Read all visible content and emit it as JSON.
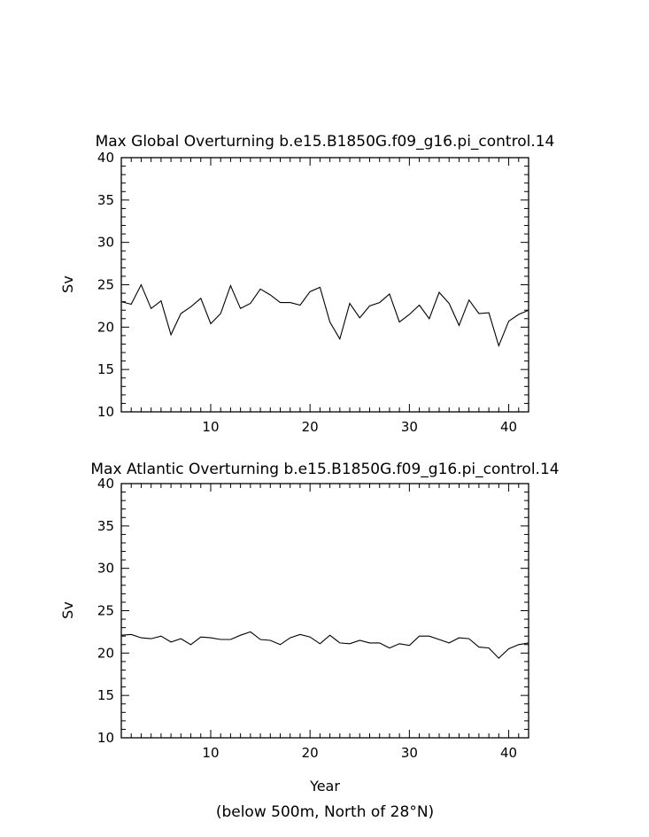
{
  "figure": {
    "footnote": "(below 500m, North of 28°N)"
  },
  "chart_data": [
    {
      "type": "line",
      "title": "Max Global Overturning b.e15.B1850G.f09_g16.pi_control.14",
      "xlabel": "",
      "ylabel": "Sv",
      "xlim": [
        1,
        42
      ],
      "ylim": [
        10,
        40
      ],
      "xticks": [
        10,
        20,
        30,
        40
      ],
      "yticks": [
        10,
        15,
        20,
        25,
        30,
        35,
        40
      ],
      "grid": false,
      "series": [
        {
          "x": [
            1,
            2,
            3,
            4,
            5,
            6,
            7,
            8,
            9,
            10,
            11,
            12,
            13,
            14,
            15,
            16,
            17,
            18,
            19,
            20,
            21,
            22,
            23,
            24,
            25,
            26,
            27,
            28,
            29,
            30,
            31,
            32,
            33,
            34,
            35,
            36,
            37,
            38,
            39,
            40,
            41,
            42
          ],
          "values": [
            23.0,
            22.7,
            25.0,
            22.2,
            23.1,
            19.1,
            21.6,
            22.4,
            23.4,
            20.4,
            21.6,
            24.9,
            22.2,
            22.8,
            24.5,
            23.8,
            22.9,
            22.9,
            22.6,
            24.2,
            24.7,
            20.6,
            18.6,
            22.8,
            21.1,
            22.5,
            22.9,
            23.9,
            20.6,
            21.5,
            22.6,
            21.0,
            24.1,
            22.8,
            20.2,
            23.2,
            21.6,
            21.7,
            17.8,
            20.7,
            21.5,
            22.0
          ]
        }
      ]
    },
    {
      "type": "line",
      "title": "Max Atlantic Overturning b.e15.B1850G.f09_g16.pi_control.14",
      "xlabel": "Year",
      "ylabel": "Sv",
      "xlim": [
        1,
        42
      ],
      "ylim": [
        10,
        40
      ],
      "xticks": [
        10,
        20,
        30,
        40
      ],
      "yticks": [
        10,
        15,
        20,
        25,
        30,
        35,
        40
      ],
      "grid": false,
      "series": [
        {
          "x": [
            1,
            2,
            3,
            4,
            5,
            6,
            7,
            8,
            9,
            10,
            11,
            12,
            13,
            14,
            15,
            16,
            17,
            18,
            19,
            20,
            21,
            22,
            23,
            24,
            25,
            26,
            27,
            28,
            29,
            30,
            31,
            32,
            33,
            34,
            35,
            36,
            37,
            38,
            39,
            40,
            41,
            42
          ],
          "values": [
            22.1,
            22.2,
            21.8,
            21.7,
            22.0,
            21.3,
            21.7,
            21.0,
            21.9,
            21.8,
            21.6,
            21.6,
            22.1,
            22.5,
            21.6,
            21.5,
            21.0,
            21.8,
            22.2,
            21.9,
            21.1,
            22.1,
            21.2,
            21.1,
            21.5,
            21.2,
            21.2,
            20.6,
            21.1,
            20.9,
            22.0,
            22.0,
            21.6,
            21.2,
            21.8,
            21.7,
            20.7,
            20.6,
            19.4,
            20.5,
            21.0,
            21.2
          ]
        }
      ]
    }
  ]
}
